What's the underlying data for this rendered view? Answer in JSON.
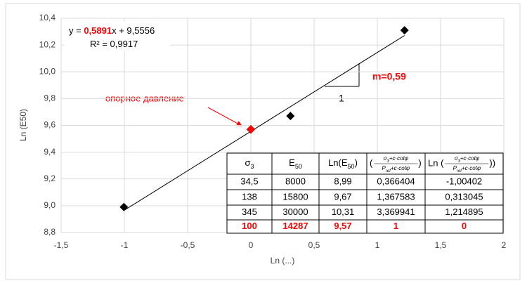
{
  "chart_data": {
    "type": "scatter",
    "x_label": "Ln (...)",
    "y_label": "Ln (E50)",
    "xlim": [
      -1.5,
      2
    ],
    "ylim": [
      8.8,
      10.4
    ],
    "xticks": [
      {
        "value": -1.5,
        "label": "-1,5"
      },
      -1,
      {
        "value": -0.5,
        "label": "-0,5"
      },
      0,
      {
        "value": 0.5,
        "label": "0,5"
      },
      1,
      {
        "value": 1.5,
        "label": "1,5"
      },
      2
    ],
    "yticks": [
      {
        "value": 8.8,
        "label": "8,8"
      },
      {
        "value": 9.0,
        "label": "9,0"
      },
      {
        "value": 9.2,
        "label": "9,2"
      },
      {
        "value": 9.4,
        "label": "9,4"
      },
      {
        "value": 9.6,
        "label": "9,6"
      },
      {
        "value": 9.8,
        "label": "9,8"
      },
      {
        "value": 10.0,
        "label": "10,0"
      },
      {
        "value": 10.2,
        "label": "10,2"
      },
      {
        "value": 10.4,
        "label": "10,4"
      }
    ],
    "grid": true,
    "x": [
      -1.00402,
      0.313045,
      1.214895,
      0
    ],
    "values": [
      8.99,
      9.67,
      10.31,
      9.57
    ],
    "colors": [
      "#000000",
      "#000000",
      "#000000",
      "#ff0000"
    ],
    "trendline": {
      "color": "#000000",
      "prefix": "y = ",
      "slope": {
        "value": 0.5891,
        "label": "0,5891"
      },
      "middle": "x + ",
      "intercept": {
        "value": 9.5556,
        "label": "9,5556"
      },
      "r2_prefix": "R² = ",
      "r2": {
        "value": 0.9917,
        "label": "0,9917"
      }
    },
    "annotations": {
      "reference": "опорное давление",
      "slope": "m=0,59",
      "run": "1"
    },
    "table": {
      "headers": [
        {
          "text": [
            "σ",
            "3",
            ""
          ]
        },
        {
          "text": [
            "E",
            "50",
            ""
          ]
        },
        {
          "text": [
            "Ln(E",
            "50",
            ")"
          ]
        },
        {
          "prefix": "(",
          "numerator": [
            "σ",
            "3",
            "+c·cotφ"
          ],
          "denominator": [
            "P",
            "ref",
            "+c·cotφ"
          ],
          "suffix": ")"
        },
        {
          "prefix": "Ln (",
          "numerator": [
            "σ",
            "3",
            "+c·cotφ"
          ],
          "denominator": [
            "P",
            "ref",
            "+c·cotφ"
          ],
          "suffix": "))"
        }
      ],
      "rows": [
        [
          "34,5",
          "8000",
          "8,99",
          "0,366404",
          "-1,00402"
        ],
        [
          "138",
          "15800",
          "9,67",
          "1,367583",
          "0,313045"
        ],
        [
          "345",
          "30000",
          "10,31",
          "3,369941",
          "1,214895"
        ],
        [
          "100",
          "14287",
          "9,57",
          "1",
          "0"
        ]
      ],
      "highlight_row": 3
    }
  }
}
